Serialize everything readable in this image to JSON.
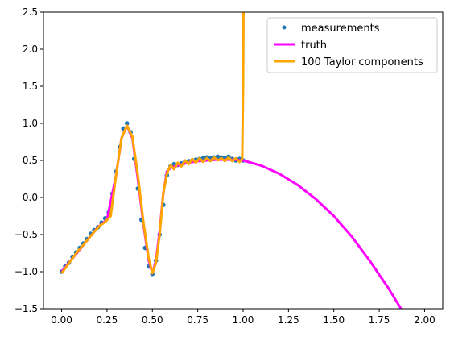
{
  "chart_data": {
    "type": "line",
    "title": "",
    "xlabel": "",
    "ylabel": "",
    "xlim": [
      -0.1,
      2.1
    ],
    "ylim": [
      -1.5,
      2.5
    ],
    "xticks": [
      0.0,
      0.25,
      0.5,
      0.75,
      1.0,
      1.25,
      1.5,
      1.75,
      2.0
    ],
    "xtick_labels": [
      "0.00",
      "0.25",
      "0.50",
      "0.75",
      "1.00",
      "1.25",
      "1.50",
      "1.75",
      "2.00"
    ],
    "yticks": [
      -1.5,
      -1.0,
      -0.5,
      0.0,
      0.5,
      1.0,
      1.5,
      2.0,
      2.5
    ],
    "ytick_labels": [
      "−1.5",
      "−1.0",
      "−0.5",
      "0.0",
      "0.5",
      "1.0",
      "1.5",
      "2.0",
      "2.5"
    ],
    "grid": false,
    "legend_position": "top-right",
    "series": [
      {
        "name": "measurements",
        "kind": "scatter",
        "color": "#1f77b4",
        "x": [
          0.0,
          0.02,
          0.04,
          0.06,
          0.08,
          0.1,
          0.12,
          0.14,
          0.16,
          0.18,
          0.2,
          0.22,
          0.24,
          0.26,
          0.28,
          0.3,
          0.32,
          0.34,
          0.36,
          0.38,
          0.4,
          0.42,
          0.44,
          0.46,
          0.48,
          0.5,
          0.52,
          0.54,
          0.56,
          0.58,
          0.6,
          0.62,
          0.64,
          0.66,
          0.68,
          0.7,
          0.72,
          0.74,
          0.76,
          0.78,
          0.8,
          0.82,
          0.84,
          0.86,
          0.88,
          0.9,
          0.92,
          0.94,
          0.96,
          0.98,
          1.0
        ],
        "y": [
          -1.0,
          -0.93,
          -0.88,
          -0.8,
          -0.74,
          -0.68,
          -0.62,
          -0.56,
          -0.49,
          -0.44,
          -0.4,
          -0.34,
          -0.28,
          -0.2,
          0.05,
          0.35,
          0.68,
          0.93,
          1.0,
          0.88,
          0.52,
          0.12,
          -0.3,
          -0.68,
          -0.93,
          -1.03,
          -0.85,
          -0.5,
          -0.1,
          0.3,
          0.42,
          0.45,
          0.44,
          0.46,
          0.48,
          0.49,
          0.5,
          0.51,
          0.52,
          0.53,
          0.54,
          0.53,
          0.54,
          0.55,
          0.54,
          0.53,
          0.55,
          0.52,
          0.5,
          0.52,
          0.5
        ]
      },
      {
        "name": "truth",
        "kind": "line",
        "color": "#ff00ff",
        "x": [
          0.0,
          0.05,
          0.1,
          0.15,
          0.2,
          0.25,
          0.3,
          0.33,
          0.36,
          0.39,
          0.42,
          0.45,
          0.48,
          0.5,
          0.52,
          0.54,
          0.56,
          0.58,
          0.6,
          0.65,
          0.7,
          0.75,
          0.8,
          0.85,
          0.9,
          0.95,
          1.0,
          1.1,
          1.2,
          1.3,
          1.4,
          1.5,
          1.6,
          1.7,
          1.8,
          1.87
        ],
        "y": [
          -1.0,
          -0.85,
          -0.7,
          -0.55,
          -0.4,
          -0.3,
          0.3,
          0.8,
          0.97,
          0.8,
          0.25,
          -0.35,
          -0.85,
          -1.02,
          -0.85,
          -0.45,
          0.05,
          0.35,
          0.4,
          0.44,
          0.47,
          0.49,
          0.5,
          0.51,
          0.51,
          0.51,
          0.5,
          0.43,
          0.32,
          0.17,
          -0.02,
          -0.25,
          -0.53,
          -0.86,
          -1.22,
          -1.5
        ]
      },
      {
        "name": "100 Taylor components",
        "kind": "line",
        "color": "#ffa500",
        "x": [
          0.0,
          0.03,
          0.06,
          0.09,
          0.12,
          0.15,
          0.18,
          0.21,
          0.24,
          0.27,
          0.3,
          0.33,
          0.36,
          0.39,
          0.42,
          0.45,
          0.48,
          0.5,
          0.52,
          0.54,
          0.56,
          0.58,
          0.6,
          0.62,
          0.64,
          0.66,
          0.68,
          0.7,
          0.72,
          0.74,
          0.76,
          0.78,
          0.8,
          0.82,
          0.84,
          0.86,
          0.88,
          0.9,
          0.92,
          0.94,
          0.96,
          0.98,
          0.995,
          1.0,
          1.002
        ],
        "y": [
          -1.02,
          -0.92,
          -0.82,
          -0.72,
          -0.64,
          -0.55,
          -0.46,
          -0.38,
          -0.33,
          -0.25,
          0.3,
          0.8,
          0.97,
          0.82,
          0.3,
          -0.32,
          -0.82,
          -1.02,
          -0.88,
          -0.5,
          0.05,
          0.32,
          0.44,
          0.38,
          0.47,
          0.42,
          0.5,
          0.45,
          0.52,
          0.47,
          0.53,
          0.48,
          0.53,
          0.49,
          0.54,
          0.5,
          0.53,
          0.49,
          0.54,
          0.49,
          0.53,
          0.48,
          0.52,
          1.5,
          2.5
        ]
      }
    ]
  }
}
